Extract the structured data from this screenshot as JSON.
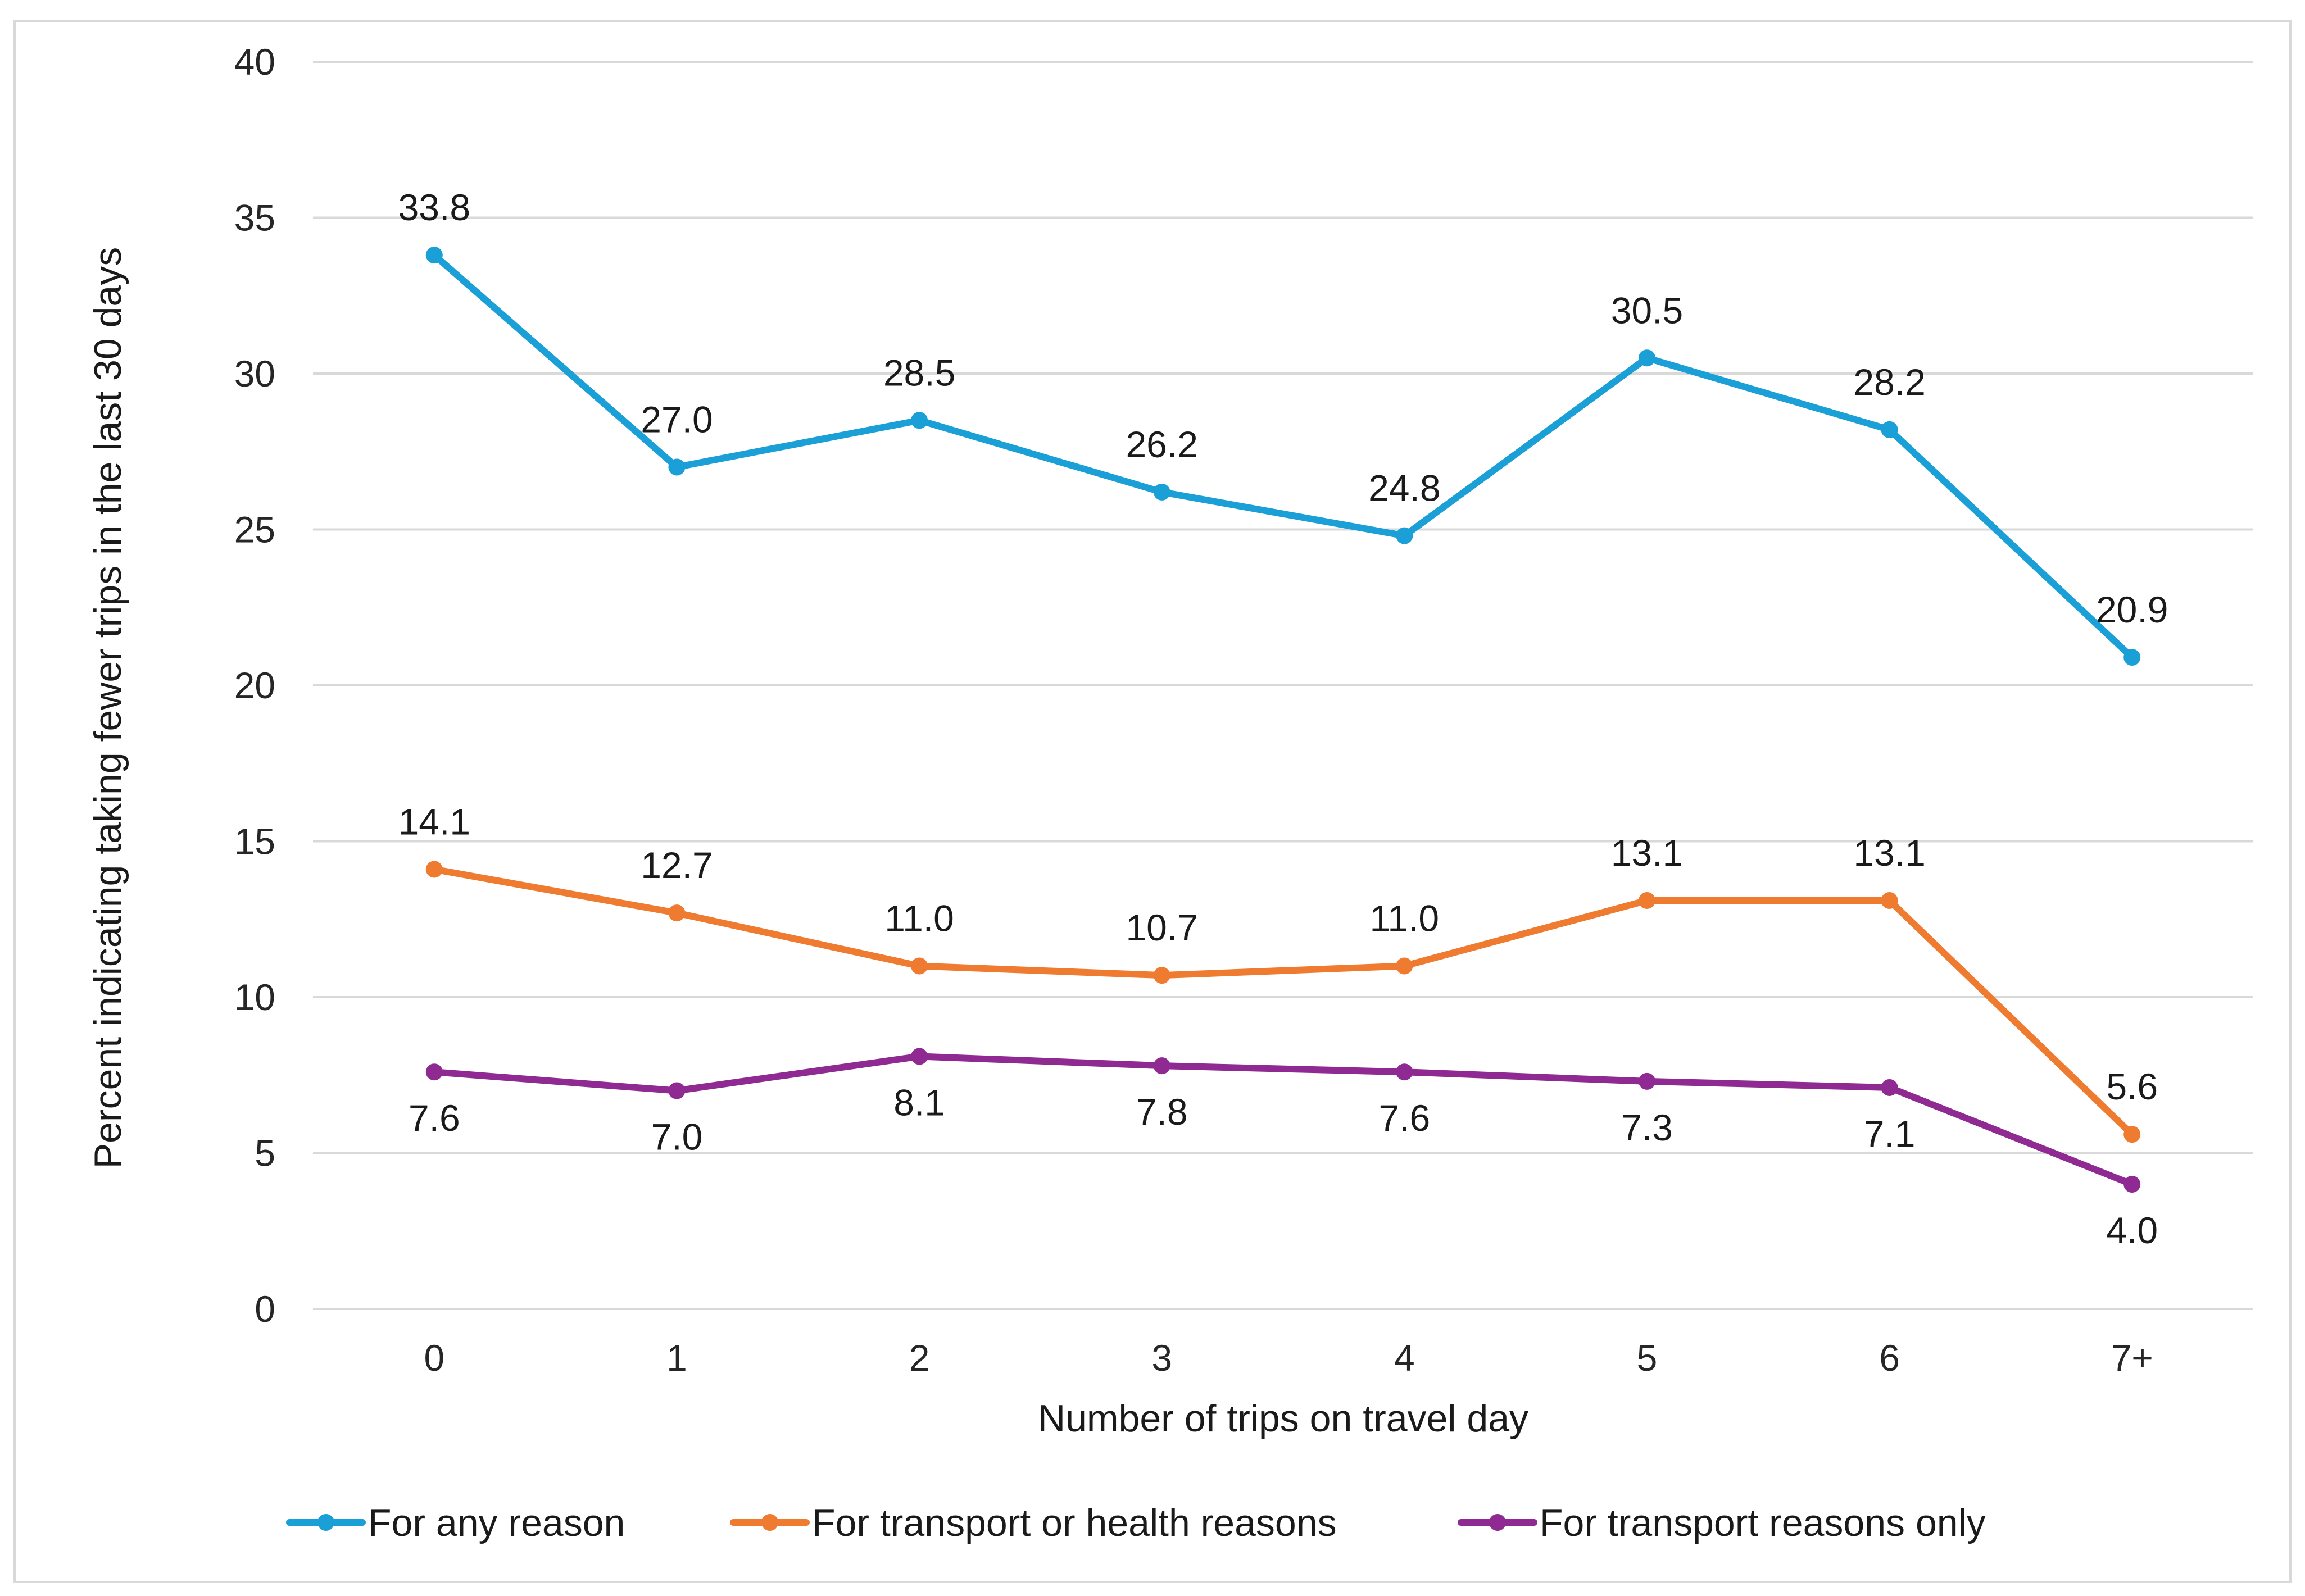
{
  "chart_data": {
    "type": "line",
    "title": "",
    "xlabel": "Number of trips on travel day",
    "ylabel": "Percent indicating taking fewer trips in the last 30 days",
    "ylim": [
      0,
      40
    ],
    "yticks": [
      "0",
      "5",
      "10",
      "15",
      "20",
      "25",
      "30",
      "35",
      "40"
    ],
    "grid": true,
    "legend_position": "bottom",
    "categories": [
      "0",
      "1",
      "2",
      "3",
      "4",
      "5",
      "6",
      "7+"
    ],
    "series": [
      {
        "name": "For any reason",
        "color": "#1a9fd6",
        "values": [
          33.8,
          27.0,
          28.5,
          26.2,
          24.8,
          30.5,
          28.2,
          20.9
        ],
        "labels": [
          "33.8",
          "27.0",
          "28.5",
          "26.2",
          "24.8",
          "30.5",
          "28.2",
          "20.9"
        ],
        "label_position": "above"
      },
      {
        "name": "For transport or health reasons",
        "color": "#ef7b30",
        "values": [
          14.1,
          12.7,
          11.0,
          10.7,
          11.0,
          13.1,
          13.1,
          5.6
        ],
        "labels": [
          "14.1",
          "12.7",
          "11.0",
          "10.7",
          "11.0",
          "13.1",
          "13.1",
          "5.6"
        ],
        "label_position": "above"
      },
      {
        "name": "For transport reasons only",
        "color": "#8e2a91",
        "values": [
          7.6,
          7.0,
          8.1,
          7.8,
          7.6,
          7.3,
          7.1,
          4.0
        ],
        "labels": [
          "7.6",
          "7.0",
          "8.1",
          "7.8",
          "7.6",
          "7.3",
          "7.1",
          "4.0"
        ],
        "label_position": "below"
      }
    ]
  }
}
